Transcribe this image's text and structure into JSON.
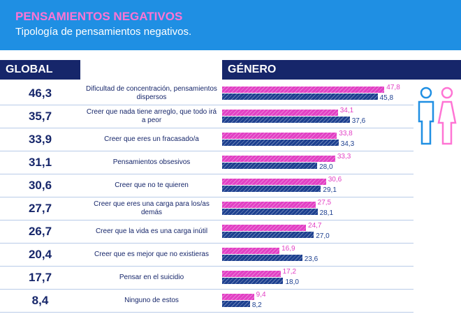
{
  "chart_data": {
    "type": "bar",
    "title": "PENSAMIENTOS NEGATIVOS",
    "subtitle": "Tipología de pensamientos negativos.",
    "global_header": "GLOBAL",
    "gender_header": "GÉNERO",
    "categories": [
      "Dificultad de concentración, pensamientos dispersos",
      "Creer que nada tiene arreglo, que todo irá a peor",
      "Creer que eres un fracasado/a",
      "Pensamientos obsesivos",
      "Creer que no te quieren",
      "Creer que eres una carga para los/as demás",
      "Creer que la vida es una carga inútil",
      "Creer que es mejor que no existieras",
      "Pensar en el suicidio",
      "Ninguno de estos"
    ],
    "global_values": [
      46.3,
      35.7,
      33.9,
      31.1,
      30.6,
      27.7,
      26.7,
      20.4,
      17.7,
      8.4
    ],
    "global_value_labels": [
      "46,3",
      "35,7",
      "33,9",
      "31,1",
      "30,6",
      "27,7",
      "26,7",
      "20,4",
      "17,7",
      "8,4"
    ],
    "xlim": [
      0,
      50
    ],
    "series": [
      {
        "color": "#e23fc4",
        "values": [
          47.8,
          34.1,
          33.8,
          33.3,
          30.6,
          27.5,
          24.7,
          16.9,
          17.2,
          9.4
        ],
        "value_labels": [
          "47,8",
          "34,1",
          "33,8",
          "33,3",
          "30,6",
          "27,5",
          "24,7",
          "16,9",
          "17,2",
          "9,4"
        ]
      },
      {
        "color": "#1c3f8f",
        "values": [
          45.8,
          37.6,
          34.3,
          28.0,
          29.1,
          28.1,
          27.0,
          23.6,
          18.0,
          8.2
        ],
        "value_labels": [
          "45,8",
          "37,6",
          "34,3",
          "28,0",
          "29,1",
          "28,1",
          "27,0",
          "23,6",
          "18,0",
          "8,2"
        ]
      }
    ]
  }
}
